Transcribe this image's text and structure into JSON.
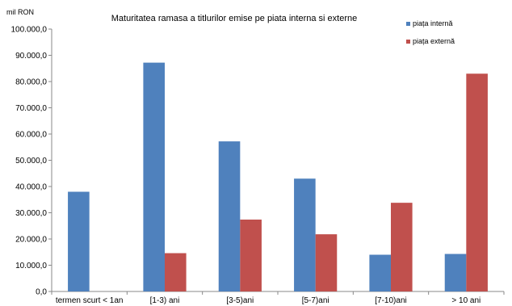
{
  "chart_data": {
    "type": "bar",
    "title": "Maturitatea ramasa a titlurilor emise pe piata interna si externe",
    "unit_label": "mil RON",
    "categories": [
      "termen scurt < 1an",
      "[1-3) ani",
      "[3-5)ani",
      "[5-7)ani",
      "[7-10)ani",
      "> 10 ani"
    ],
    "series": [
      {
        "name": "piața internă",
        "color": "#4F81BD",
        "values": [
          38000,
          87200,
          57200,
          43000,
          14000,
          14300
        ]
      },
      {
        "name": "piața externă",
        "color": "#C0504D",
        "values": [
          0,
          14600,
          27400,
          21800,
          33800,
          83000
        ]
      }
    ],
    "ylim": [
      0,
      100000
    ],
    "yticks": [
      "0,0",
      "10.000,0",
      "20.000,0",
      "30.000,0",
      "40.000,0",
      "50.000,0",
      "60.000,0",
      "70.000,0",
      "80.000,0",
      "90.000,0",
      "100.000,0"
    ],
    "grid": false,
    "legend_position": "top-right"
  }
}
